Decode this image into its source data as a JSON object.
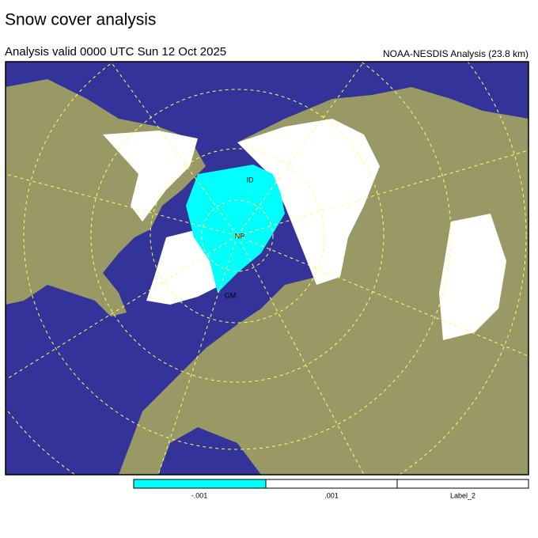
{
  "title": "Snow cover analysis",
  "subtitle": "Analysis valid 0000 UTC  Sun 12 Oct 2025",
  "source": "NOAA-NESDIS Analysis (23.8 km)",
  "map": {
    "labels": [
      "ID",
      "NP",
      "GM"
    ]
  },
  "legend": {
    "labels": [
      "-.001",
      ".001",
      "Label_2"
    ]
  }
}
